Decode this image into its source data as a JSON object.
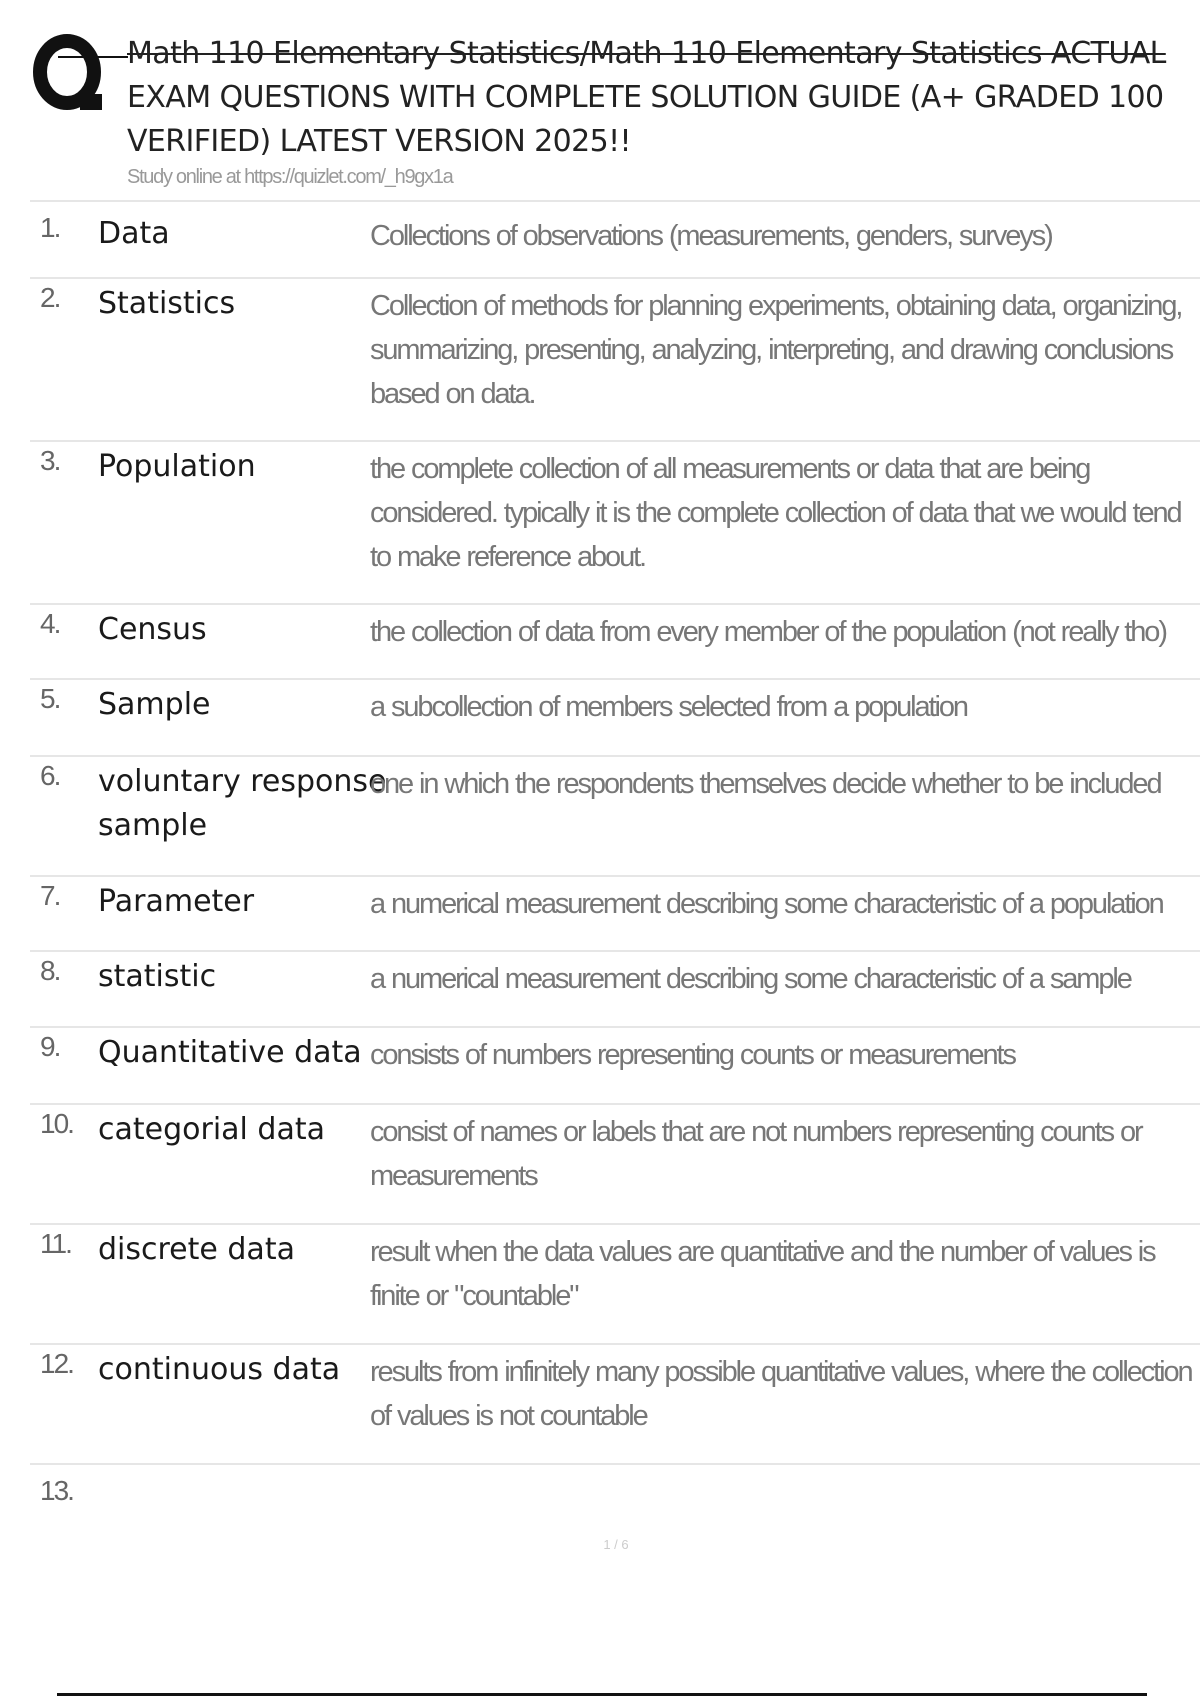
{
  "header": {
    "title_line1": "Math 110 Elementary Statistics/Math 110 Elementary Statistics ACTUAL",
    "title_line2": "EXAM QUESTIONS WITH COMPLETE SOLUTION GUIDE (A+ GRADED 100",
    "title_line3": "VERIFIED) LATEST VERSION 2025!!",
    "subtitle": "Study online at https://quizlet.com/_h9gx1a",
    "logo_icon": "quizlet-q-logo"
  },
  "cards": [
    {
      "num": "1.",
      "term": "Data",
      "definition": "Collections of observations (measurements, genders, surveys)"
    },
    {
      "num": "2.",
      "term": "Statistics",
      "definition": "Collection of methods for planning experiments, obtaining data, organizing, sum­marizing, presenting, analyzing, interpreting, and drawing conclusions based on data."
    },
    {
      "num": "3.",
      "term": "Population",
      "definition": "the complete collection of all measurements or data that are being considered. typically it is the complete collection of data that we would tend to make reference about."
    },
    {
      "num": "4.",
      "term": "Census",
      "definition": "the collection of data from every member of the population (not really tho)"
    },
    {
      "num": "5.",
      "term": "Sample",
      "definition": "a subcollection of members selected from a population"
    },
    {
      "num": "6.",
      "term": "voluntary re­sponse sample",
      "definition": "one in which the respondents themselves decide whether to be included"
    },
    {
      "num": "7.",
      "term": "Parameter",
      "definition": "a numerical measurement describing some characteristic of a population"
    },
    {
      "num": "8.",
      "term": "statistic",
      "definition": "a numerical measurement describing some characteristic of a sample"
    },
    {
      "num": "9.",
      "term": "Quantitative data",
      "definition": "consists of numbers representing counts or measurements"
    },
    {
      "num": "10.",
      "term": "categorial data",
      "definition": "consist of names or labels that are not numbers representing counts or measure­ments"
    },
    {
      "num": "11.",
      "term": "discrete data",
      "definition": "result when the data values are quantitative and the number of values is finite or \"countable\""
    },
    {
      "num": "12.",
      "term": "continuous data",
      "definition": "results from infinitely many possible quantitative values, where the collection of values is not countable"
    },
    {
      "num": "13.",
      "term": "",
      "definition": ""
    }
  ],
  "footer": {
    "page": "1 / 6"
  }
}
